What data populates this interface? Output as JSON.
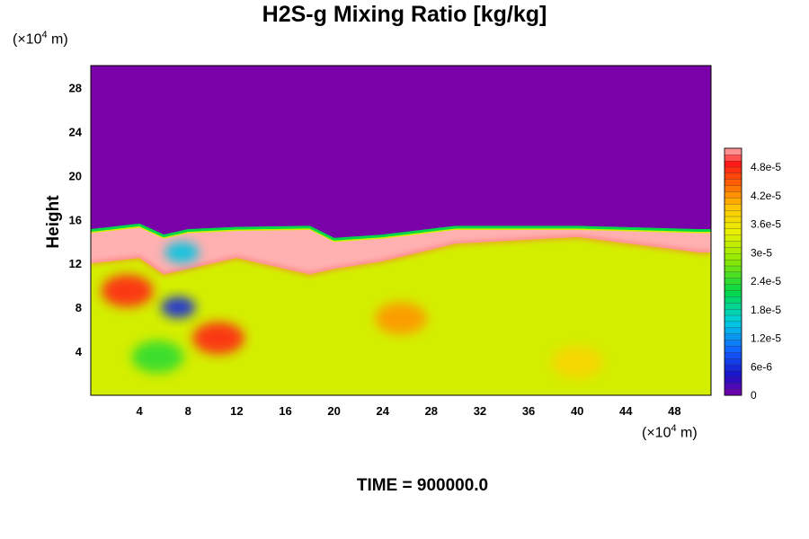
{
  "title": "H2S-g Mixing Ratio [kg/kg]",
  "time_label": "TIME = 900000.0",
  "y_unit_prefix": "(×10",
  "y_unit_exp": "4",
  "y_unit_suffix": " m)",
  "x_unit_prefix": "(×10",
  "x_unit_exp": "4",
  "x_unit_suffix": " m)",
  "chart_data": {
    "type": "heatmap",
    "title": "H2S-g Mixing Ratio [kg/kg]",
    "xlabel": "",
    "ylabel": "Height",
    "xlim": [
      0,
      51
    ],
    "ylim": [
      0,
      30
    ],
    "x_ticks": [
      4,
      8,
      12,
      16,
      20,
      24,
      28,
      32,
      36,
      40,
      44,
      48
    ],
    "y_ticks": [
      4,
      8,
      12,
      16,
      20,
      24,
      28
    ],
    "colorbar": {
      "ticks": [
        "0",
        "6e-6",
        "1.2e-5",
        "1.8e-5",
        "2.4e-5",
        "3e-5",
        "3.6e-5",
        "4.2e-5",
        "4.8e-5"
      ],
      "min": 0,
      "max": 5.2e-05
    },
    "fields": {
      "top_value": 0,
      "lower_layer_value": 3.3e-05,
      "inversion_top_height": [
        [
          0,
          15.0
        ],
        [
          4,
          15.5
        ],
        [
          6,
          14.5
        ],
        [
          8,
          15.0
        ],
        [
          12,
          15.2
        ],
        [
          18,
          15.3
        ],
        [
          20,
          14.2
        ],
        [
          24,
          14.5
        ],
        [
          30,
          15.3
        ],
        [
          40,
          15.3
        ],
        [
          50,
          15.0
        ]
      ],
      "high_band_bottom_height": [
        [
          0,
          12.0
        ],
        [
          4,
          12.5
        ],
        [
          6,
          11.0
        ],
        [
          8,
          11.5
        ],
        [
          12,
          12.5
        ],
        [
          18,
          11.0
        ],
        [
          20,
          11.5
        ],
        [
          24,
          12.2
        ],
        [
          30,
          13.8
        ],
        [
          40,
          14.4
        ],
        [
          50,
          13.0
        ]
      ],
      "features": [
        {
          "x": 7.2,
          "y": 8.0,
          "value": 6e-06
        },
        {
          "x": 7.5,
          "y": 13.0,
          "value": 1.5e-05
        },
        {
          "x": 25.5,
          "y": 7.0,
          "value": 4.2e-05
        },
        {
          "x": 10.5,
          "y": 5.2,
          "value": 4.8e-05
        },
        {
          "x": 3.0,
          "y": 9.5,
          "value": 4.8e-05
        },
        {
          "x": 5.5,
          "y": 3.5,
          "value": 2.4e-05
        },
        {
          "x": 40.0,
          "y": 3.0,
          "value": 3.8e-05
        }
      ]
    }
  }
}
